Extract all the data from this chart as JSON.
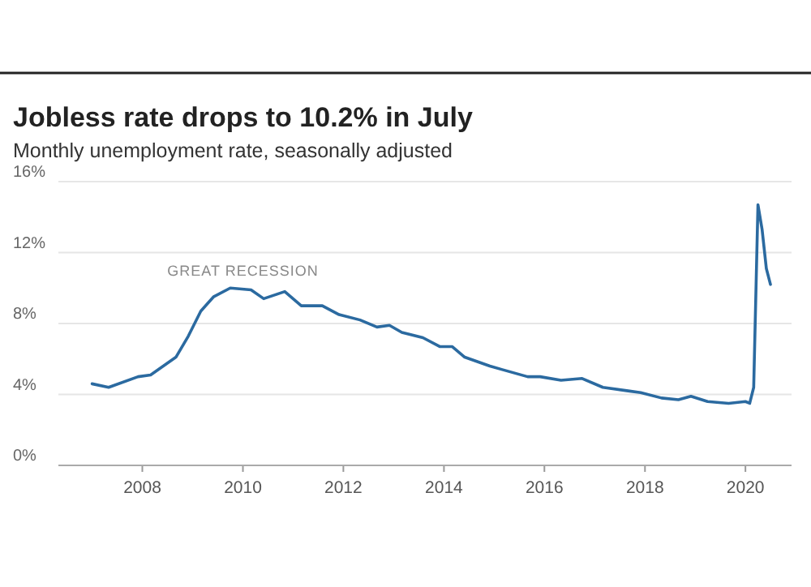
{
  "chart_data": {
    "type": "line",
    "title": "Jobless rate drops to 10.2% in July",
    "subtitle": "Monthly unemployment rate, seasonally adjusted",
    "x": [
      "2007-01",
      "2007-05",
      "2007-12",
      "2008-03",
      "2008-06",
      "2008-09",
      "2008-12",
      "2009-03",
      "2009-06",
      "2009-10",
      "2010-03",
      "2010-06",
      "2010-11",
      "2011-03",
      "2011-08",
      "2011-12",
      "2012-05",
      "2012-09",
      "2012-12",
      "2013-03",
      "2013-08",
      "2013-12",
      "2014-03",
      "2014-06",
      "2014-12",
      "2015-03",
      "2015-09",
      "2015-12",
      "2016-05",
      "2016-10",
      "2017-03",
      "2017-09",
      "2017-12",
      "2018-05",
      "2018-09",
      "2018-12",
      "2019-04",
      "2019-09",
      "2020-01",
      "2020-02",
      "2020-03",
      "2020-04",
      "2020-05",
      "2020-06",
      "2020-07"
    ],
    "series": [
      {
        "color": "#2b6aa0",
        "values": [
          4.6,
          4.4,
          5.0,
          5.1,
          5.6,
          6.1,
          7.3,
          8.7,
          9.5,
          10.0,
          9.9,
          9.4,
          9.8,
          9.0,
          9.0,
          8.5,
          8.2,
          7.8,
          7.9,
          7.5,
          7.2,
          6.7,
          6.7,
          6.1,
          5.6,
          5.4,
          5.0,
          5.0,
          4.8,
          4.9,
          4.4,
          4.2,
          4.1,
          3.8,
          3.7,
          3.9,
          3.6,
          3.5,
          3.6,
          3.5,
          4.4,
          14.7,
          13.3,
          11.1,
          10.2
        ]
      }
    ],
    "xlim": [
      "2006-05",
      "2020-12"
    ],
    "xticks": [
      "2008",
      "2010",
      "2012",
      "2014",
      "2016",
      "2018",
      "2020"
    ],
    "ylim": [
      0,
      16
    ],
    "yticks": [
      {
        "value": 0,
        "label": "0%"
      },
      {
        "value": 4,
        "label": "4%"
      },
      {
        "value": 8,
        "label": "8%"
      },
      {
        "value": 12,
        "label": "12%"
      },
      {
        "value": 16,
        "label": "16%"
      }
    ],
    "annotations": [
      "GREAT RECESSION"
    ],
    "grid": "y",
    "marker": "none",
    "line_style": "solid"
  }
}
